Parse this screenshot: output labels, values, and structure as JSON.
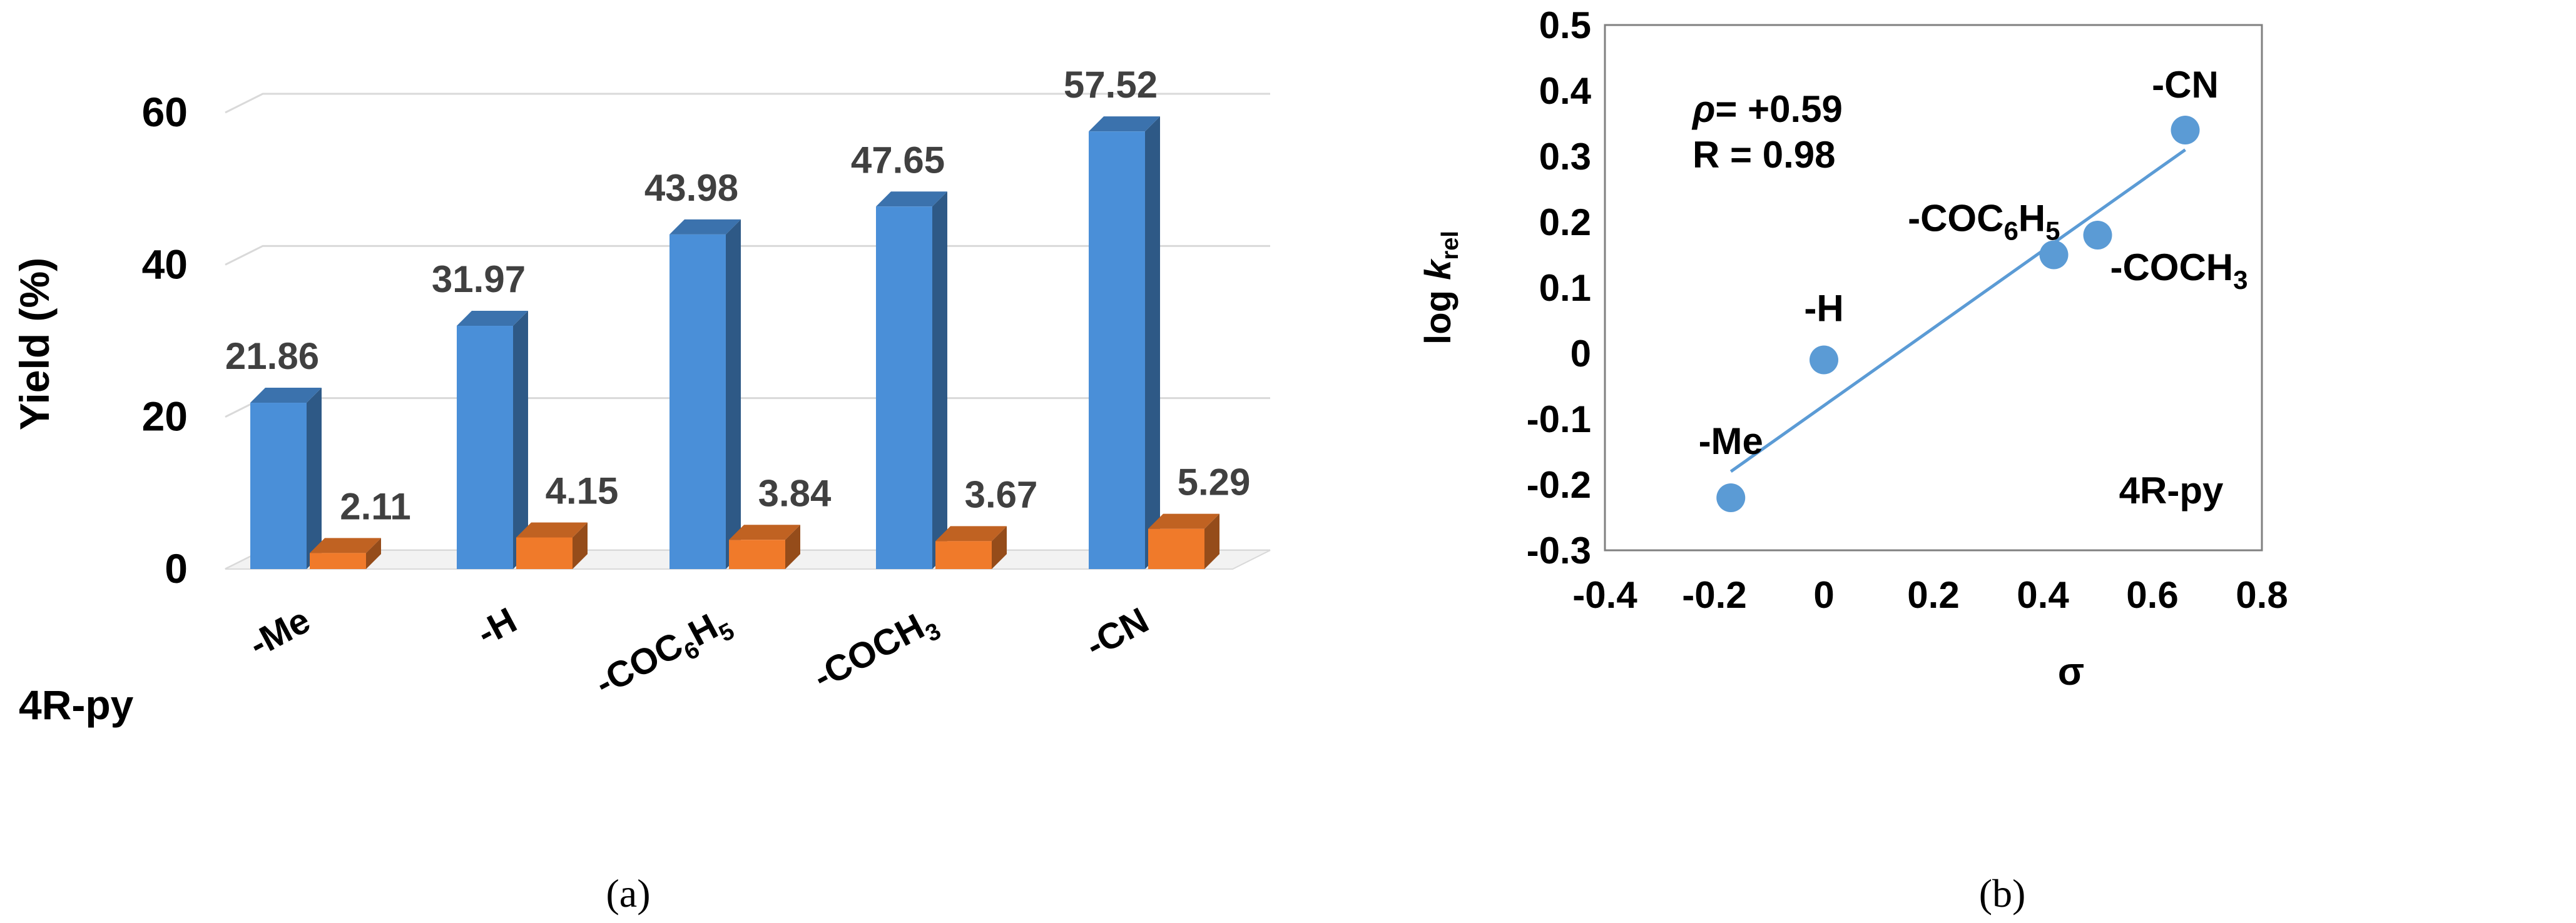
{
  "chart_data": [
    {
      "type": "bar",
      "panel_label": "(a)",
      "ylabel": "Yield (%)",
      "category_axis_title": "4R-py",
      "categories": [
        "-Me",
        "-H",
        "-COC6H5",
        "-COCH3",
        "-CN"
      ],
      "category_labels": [
        {
          "base": "-Me"
        },
        {
          "base": "-H"
        },
        {
          "base": "-COC",
          "sub1": "6",
          "mid": "H",
          "sub2": "5"
        },
        {
          "base": "-COCH",
          "sub1": "3"
        },
        {
          "base": "-CN"
        }
      ],
      "ylim": [
        0,
        60
      ],
      "yticks": [
        0,
        20,
        40,
        60
      ],
      "grid": true,
      "series": [
        {
          "color": "#4a8fd8",
          "values": [
            21.86,
            31.97,
            43.98,
            47.65,
            57.52
          ],
          "labels": [
            "21.86",
            "31.97",
            "43.98",
            "47.65",
            "57.52"
          ]
        },
        {
          "color": "#f07a2a",
          "values": [
            2.11,
            4.15,
            3.84,
            3.67,
            5.29
          ],
          "labels": [
            "2.11",
            "4.15",
            "3.84",
            "3.67",
            "5.29"
          ]
        }
      ]
    },
    {
      "type": "scatter",
      "panel_label": "(b)",
      "xlabel": "σ",
      "ylabel": {
        "pre": "log ",
        "italic": "k",
        "sub": "rel"
      },
      "xlim": [
        -0.4,
        0.8
      ],
      "ylim": [
        -0.3,
        0.5
      ],
      "xticks": [
        -0.4,
        -0.2,
        0,
        0.2,
        0.4,
        0.6,
        0.8
      ],
      "xtick_labels": [
        "-0.4",
        "-0.2",
        "0",
        "0.2",
        "0.4",
        "0.6",
        "0.8"
      ],
      "yticks": [
        -0.3,
        -0.2,
        -0.1,
        0,
        0.1,
        0.2,
        0.3,
        0.4,
        0.5
      ],
      "ytick_labels": [
        "-0.3",
        "-0.2",
        "-0.1",
        "0",
        "0.1",
        "0.2",
        "0.3",
        "0.4",
        "0.5"
      ],
      "grid": false,
      "point_color": "#5b9bd5",
      "points": [
        {
          "x": -0.17,
          "y": -0.22,
          "label": {
            "base": "-Me"
          }
        },
        {
          "x": 0.0,
          "y": -0.01,
          "label": {
            "base": "-H"
          }
        },
        {
          "x": 0.42,
          "y": 0.15,
          "label": {
            "base": "-COC",
            "sub1": "6",
            "mid": "H",
            "sub2": "5"
          }
        },
        {
          "x": 0.5,
          "y": 0.18,
          "label": {
            "base": "-COCH",
            "sub1": "3"
          }
        },
        {
          "x": 0.66,
          "y": 0.34,
          "label": {
            "base": "-CN"
          }
        }
      ],
      "fit_line": {
        "x": [
          -0.17,
          0.66
        ],
        "y": [
          -0.18,
          0.31
        ]
      },
      "annotations": {
        "rho_symbol": "ρ",
        "rho_text": "= +0.59",
        "r_text": "R = 0.98",
        "series_tag": "4R-py"
      }
    }
  ]
}
